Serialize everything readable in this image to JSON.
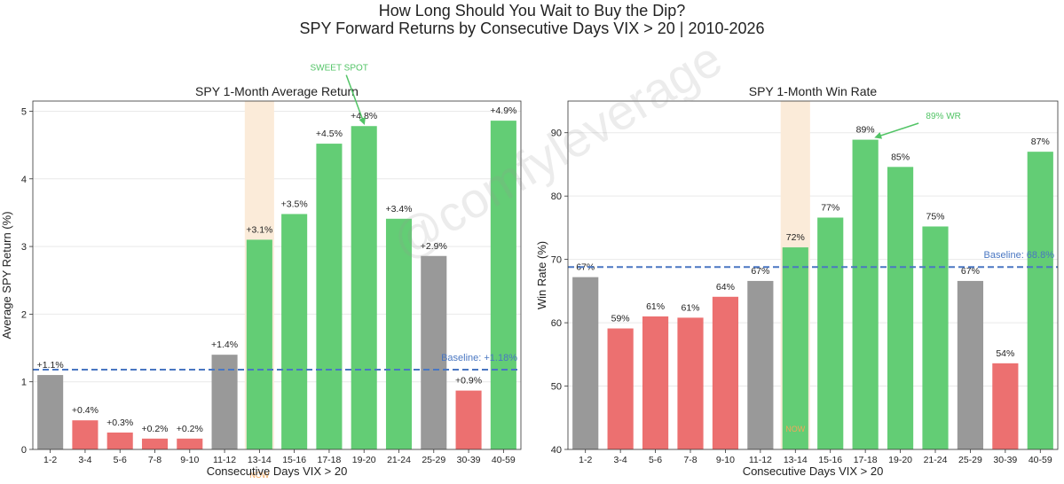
{
  "suptitle": [
    "How Long Should You Wait to Buy the Dip?",
    "SPY Forward Returns by Consecutive Days VIX > 20 | 2010-2026"
  ],
  "watermark": "@comfyleverage",
  "colors": {
    "gray": "#999999",
    "red": "#EC7070",
    "green": "#63CD75",
    "baseline": "#4A77C2",
    "highlight": "#FBEBD9",
    "now": "#F2A65A",
    "annot": "#52C466",
    "grid": "#e9e9e9"
  },
  "chart_data": [
    {
      "type": "bar",
      "title": "SPY 1-Month Average Return",
      "xlabel": "Consecutive Days VIX > 20",
      "ylabel": "Average SPY Return (%)",
      "ylim": [
        0,
        5.15
      ],
      "yticks": [
        0,
        1,
        2,
        3,
        4,
        5
      ],
      "categories": [
        "1-2",
        "3-4",
        "5-6",
        "7-8",
        "9-10",
        "11-12",
        "13-14",
        "15-16",
        "17-18",
        "19-20",
        "21-24",
        "25-29",
        "30-39",
        "40-59"
      ],
      "values": [
        1.1,
        0.43,
        0.25,
        0.16,
        0.16,
        1.4,
        3.1,
        3.48,
        4.52,
        4.78,
        3.41,
        2.86,
        0.87,
        4.86
      ],
      "bar_colors": [
        "gray",
        "red",
        "red",
        "red",
        "red",
        "gray",
        "green",
        "green",
        "green",
        "green",
        "green",
        "gray",
        "red",
        "green"
      ],
      "labels": [
        "+1.1%",
        "+0.4%",
        "+0.3%",
        "+0.2%",
        "+0.2%",
        "+1.4%",
        "+3.1%",
        "+3.5%",
        "+4.5%",
        "+4.8%",
        "+3.4%",
        "+2.9%",
        "+0.9%",
        "+4.9%"
      ],
      "baseline": 1.18,
      "baseline_label": "Baseline: +1.18%",
      "highlight_category": "13-14",
      "highlight_label": "NOW",
      "annotation": {
        "text": "SWEET SPOT",
        "category": "19-20",
        "text_value": 5.6,
        "target_value": 4.82
      }
    },
    {
      "type": "bar",
      "title": "SPY 1-Month Win Rate",
      "xlabel": "Consecutive Days VIX > 20",
      "ylabel": "Win Rate (%)",
      "ylim": [
        40,
        95
      ],
      "yticks": [
        40,
        50,
        60,
        70,
        80,
        90
      ],
      "categories": [
        "1-2",
        "3-4",
        "5-6",
        "7-8",
        "9-10",
        "11-12",
        "13-14",
        "15-16",
        "17-18",
        "19-20",
        "21-24",
        "25-29",
        "30-39",
        "40-59"
      ],
      "values": [
        67.2,
        59.1,
        61.0,
        60.8,
        64.1,
        66.6,
        71.9,
        76.6,
        88.9,
        84.6,
        75.2,
        66.6,
        53.6,
        87.0
      ],
      "bar_colors": [
        "gray",
        "red",
        "red",
        "red",
        "red",
        "gray",
        "green",
        "green",
        "green",
        "green",
        "green",
        "gray",
        "red",
        "green"
      ],
      "labels": [
        "67%",
        "59%",
        "61%",
        "61%",
        "64%",
        "67%",
        "72%",
        "77%",
        "89%",
        "85%",
        "75%",
        "67%",
        "54%",
        "87%"
      ],
      "baseline": 68.8,
      "baseline_label": "Baseline: 68.8%",
      "highlight_category": "13-14",
      "highlight_label": "NOW",
      "annotation": {
        "text": "89% WR",
        "category": "17-18",
        "text_value": 92.2,
        "target_value": 89.3
      }
    }
  ]
}
